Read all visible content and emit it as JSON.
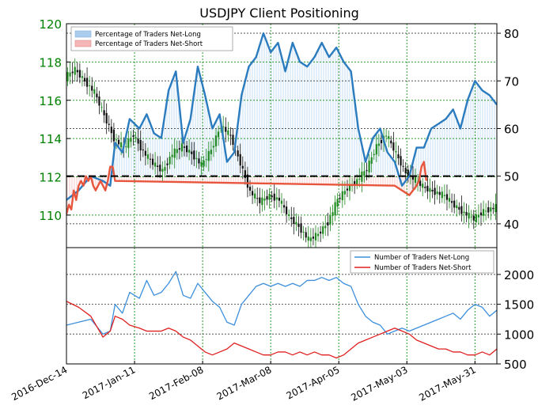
{
  "chart_data": [
    {
      "type": "line",
      "title": "USDJPY Client Positioning",
      "left_axis": {
        "ylim": [
          108.3,
          120
        ],
        "ticks": [
          110,
          112,
          114,
          116,
          118,
          120
        ],
        "tick_labels": [
          "110",
          "112",
          "114",
          "116",
          "118",
          "120"
        ],
        "color": "#008000"
      },
      "right_axis": {
        "ylim": [
          35,
          82
        ],
        "ticks": [
          40,
          50,
          60,
          70,
          80
        ],
        "tick_labels": [
          "40",
          "50",
          "60",
          "70",
          "80"
        ]
      },
      "legend": {
        "placement": "top-left",
        "entries": [
          {
            "label": "Percentage of Traders Net-Long",
            "color": "#aaccee"
          },
          {
            "label": "Percentage of Traders Net-Short",
            "color": "#f4b6b6"
          }
        ]
      },
      "reference_line": {
        "value": 50,
        "axis": "right",
        "style": "dashed",
        "color": "#000000"
      },
      "grid": true,
      "series": [
        {
          "name": "Percentage of Traders Net-Long",
          "axis": "right",
          "x": [
            0,
            5,
            10,
            15,
            18,
            20,
            23,
            26,
            30,
            33,
            36,
            39,
            42,
            45,
            48,
            51,
            54,
            57,
            60,
            63,
            66,
            69,
            72,
            75,
            78,
            81,
            84,
            87,
            90,
            93,
            96,
            99,
            102,
            105,
            108,
            111,
            114,
            117,
            120,
            123,
            126,
            129,
            132,
            135,
            138,
            141,
            144,
            147,
            150,
            153,
            156,
            159,
            162,
            165,
            168,
            171,
            174,
            177
          ],
          "values": [
            45,
            47,
            50,
            49,
            48,
            57,
            55,
            62,
            60,
            63,
            59,
            58,
            68,
            72,
            57,
            62,
            73,
            67,
            60,
            63,
            53,
            55,
            67,
            73,
            75,
            80,
            76,
            78,
            72,
            78,
            74,
            73,
            75,
            78,
            75,
            77,
            74,
            72,
            60,
            53,
            58,
            60,
            55,
            53,
            48,
            50,
            56,
            56,
            60,
            61,
            62,
            64,
            60,
            66,
            70,
            68,
            67,
            65
          ]
        },
        {
          "name": "Percentage of Traders Net-Short",
          "axis": "right",
          "x": [
            0,
            1,
            2,
            3,
            4,
            5,
            6,
            7,
            8,
            9,
            10,
            11,
            12,
            13,
            14,
            15,
            16,
            17,
            18,
            19,
            20,
            135,
            138,
            141,
            144,
            145,
            146,
            147,
            148
          ],
          "values": [
            42,
            44,
            43,
            47,
            45,
            48,
            49,
            48,
            50,
            49,
            50,
            48,
            47,
            48,
            49,
            48,
            47,
            49,
            52,
            52,
            49,
            48,
            47,
            46,
            48,
            49,
            52,
            53,
            49
          ]
        },
        {
          "name": "USDJPY",
          "axis": "left",
          "x": [
            0,
            4,
            8,
            12,
            16,
            20,
            24,
            28,
            32,
            36,
            40,
            44,
            48,
            52,
            56,
            60,
            64,
            68,
            72,
            76,
            80,
            84,
            88,
            92,
            96,
            100,
            104,
            108,
            112,
            116,
            120,
            124,
            128,
            132,
            136,
            140,
            144,
            148,
            152,
            156,
            160,
            164,
            168,
            172,
            177
          ],
          "values": [
            117.2,
            117.6,
            117.0,
            116.4,
            115.2,
            114.0,
            113.5,
            114.2,
            113.3,
            112.7,
            112.3,
            113.2,
            113.6,
            113.2,
            112.6,
            113.4,
            114.7,
            114.1,
            112.7,
            111.2,
            110.7,
            111.0,
            110.8,
            109.9,
            109.4,
            108.7,
            109.0,
            109.6,
            110.8,
            111.4,
            111.8,
            112.4,
            113.6,
            114.2,
            113.2,
            112.2,
            111.8,
            111.4,
            111.2,
            111.0,
            110.5,
            110.1,
            109.8,
            110.2,
            110.4
          ]
        }
      ]
    },
    {
      "type": "line",
      "yticks": [
        500,
        1000,
        1500,
        2000
      ],
      "ytick_labels": [
        "500",
        "1000",
        "1500",
        "2000"
      ],
      "ylim": [
        500,
        2450
      ],
      "xtick_labels": [
        "2016-Dec-14",
        "2017-Jan-11",
        "2017-Feb-08",
        "2017-Mar-08",
        "2017-Apr-05",
        "2017-May-03",
        "2017-May-31"
      ],
      "legend": {
        "placement": "top-right",
        "entries": [
          {
            "label": "Number of Traders Net-Long",
            "color": "#3d8fdc"
          },
          {
            "label": "Number of Traders Net-Short",
            "color": "#e02020"
          }
        ]
      },
      "grid": true,
      "series": [
        {
          "name": "Number of Traders Net-Long",
          "x": [
            0,
            5,
            10,
            15,
            18,
            20,
            23,
            26,
            30,
            33,
            36,
            39,
            42,
            45,
            48,
            51,
            54,
            57,
            60,
            63,
            66,
            69,
            72,
            75,
            78,
            81,
            84,
            87,
            90,
            93,
            96,
            99,
            102,
            105,
            108,
            111,
            114,
            117,
            120,
            123,
            126,
            129,
            132,
            135,
            138,
            141,
            144,
            147,
            150,
            153,
            156,
            159,
            162,
            165,
            168,
            171,
            174,
            177
          ],
          "values": [
            1150,
            1200,
            1250,
            1000,
            1050,
            1500,
            1350,
            1700,
            1600,
            1900,
            1650,
            1700,
            1850,
            2050,
            1650,
            1600,
            1850,
            1700,
            1550,
            1450,
            1200,
            1150,
            1500,
            1650,
            1800,
            1850,
            1800,
            1850,
            1800,
            1850,
            1800,
            1900,
            1900,
            1950,
            1900,
            1950,
            1850,
            1800,
            1500,
            1300,
            1200,
            1150,
            1000,
            1050,
            1100,
            1050,
            1100,
            1150,
            1200,
            1250,
            1300,
            1350,
            1250,
            1400,
            1500,
            1450,
            1300,
            1400
          ]
        },
        {
          "name": "Number of Traders Net-Short",
          "x": [
            0,
            5,
            10,
            15,
            18,
            20,
            23,
            26,
            30,
            33,
            36,
            39,
            42,
            45,
            48,
            51,
            54,
            57,
            60,
            63,
            66,
            69,
            72,
            75,
            78,
            81,
            84,
            87,
            90,
            93,
            96,
            99,
            102,
            105,
            108,
            111,
            114,
            117,
            120,
            123,
            126,
            129,
            132,
            135,
            138,
            141,
            144,
            147,
            150,
            153,
            156,
            159,
            162,
            165,
            168,
            171,
            174,
            177
          ],
          "values": [
            1550,
            1450,
            1300,
            950,
            1050,
            1300,
            1250,
            1150,
            1100,
            1050,
            1050,
            1050,
            1100,
            1050,
            950,
            900,
            800,
            700,
            650,
            700,
            750,
            850,
            800,
            750,
            700,
            650,
            650,
            700,
            700,
            650,
            700,
            650,
            700,
            650,
            650,
            600,
            650,
            750,
            850,
            900,
            950,
            1000,
            1050,
            1100,
            1050,
            1000,
            900,
            850,
            800,
            750,
            750,
            700,
            700,
            650,
            650,
            700,
            650,
            750
          ]
        }
      ]
    }
  ]
}
